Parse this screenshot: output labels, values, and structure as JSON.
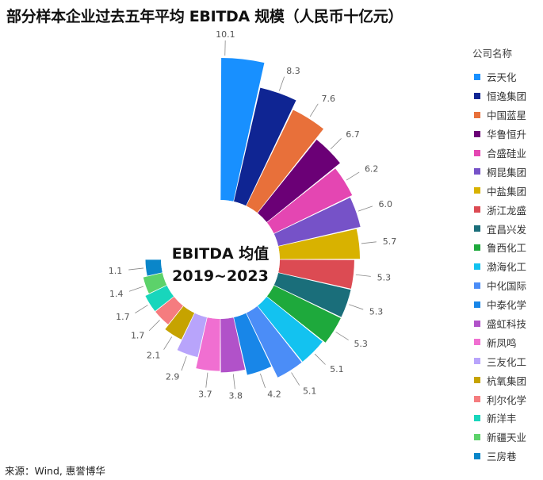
{
  "title": "部分样本企业过去五年平均 EBITDA 规模（人民币十亿元）",
  "source": "来源：Wind, 惠誉博华",
  "center_label": [
    "EBITDA 均值",
    "2019~2023"
  ],
  "legend_title": "公司名称",
  "chart_data": {
    "type": "bar",
    "subtype": "polar-bar (nightingale)",
    "title": "部分样本企业过去五年平均 EBITDA 规模（人民币十亿元）",
    "categories": [
      "云天化",
      "恒逸集团",
      "中国蓝星",
      "华鲁恒升",
      "合盛硅业",
      "桐昆集团",
      "中盐集团",
      "浙江龙盛",
      "宜昌兴发",
      "鲁西化工",
      "渤海化工",
      "中化国际",
      "中泰化学",
      "盛虹科技",
      "新凤鸣",
      "三友化工",
      "杭氧集团",
      "利尔化学",
      "新洋丰",
      "新疆天业",
      "三房巷"
    ],
    "values": [
      10.1,
      8.3,
      7.6,
      6.7,
      6.2,
      6.0,
      5.7,
      5.3,
      5.3,
      5.3,
      5.1,
      5.1,
      4.2,
      3.8,
      3.7,
      2.9,
      2.1,
      1.7,
      1.7,
      1.4,
      1.1
    ],
    "value_labels": [
      "10.1",
      "8.3",
      "7.6",
      "6.7",
      "6.2",
      "6.0",
      "5.7",
      "5.3",
      "5.3",
      "5.3",
      "5.1",
      "5.1",
      "4.2",
      "3.8",
      "3.7",
      "2.9",
      "2.1",
      "1.7",
      "1.7",
      "1.4",
      "1.1"
    ],
    "colors": [
      "#1890ff",
      "#0f2593",
      "#e8703a",
      "#6b0076",
      "#e446b2",
      "#7652c8",
      "#d8b200",
      "#dc4b53",
      "#1a6e7a",
      "#1ea93c",
      "#13c2f0",
      "#4b8df7",
      "#1886e8",
      "#b152c9",
      "#f06fd1",
      "#b8a4fb",
      "#c6a300",
      "#f57c7f",
      "#18d6bc",
      "#5cd26a",
      "#0a86c9"
    ],
    "legend_position": "right",
    "grid": false
  }
}
